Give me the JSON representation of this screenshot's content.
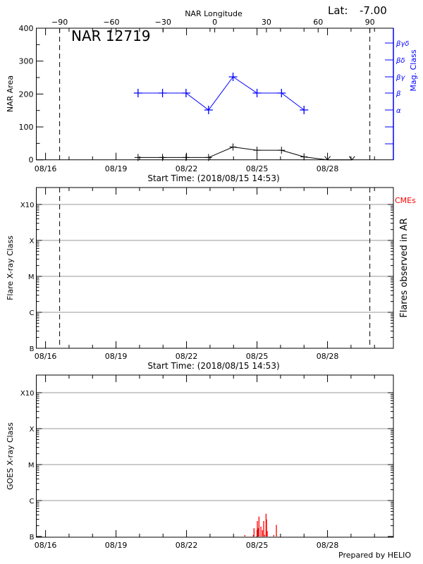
{
  "header": {
    "lat_label": "Lat:",
    "lat_value": "-7.00",
    "region_title": "NAR 12719"
  },
  "footer": {
    "credit": "Prepared by HELIO"
  },
  "colors": {
    "area": "#000000",
    "mag_class": "#0000ff",
    "goes_flux": "#ff0000",
    "cme_label": "#ff0000",
    "grid": "#999999"
  },
  "chart_data": [
    {
      "type": "line",
      "title": "NAR 12719",
      "xlabel": "Start Time: (2018/08/15 14:53)",
      "x_ticks": [
        "08/16",
        "08/19",
        "08/22",
        "08/25",
        "08/28"
      ],
      "top_axis": {
        "label": "NAR Longitude",
        "ticks": [
          "-90",
          "-60",
          "-30",
          "0",
          "30",
          "60",
          "90"
        ],
        "limb_markers_longitude": [
          -90,
          90
        ]
      },
      "ylabel": "NAR Area",
      "ylim": [
        0,
        400
      ],
      "y_ticks": [
        "0",
        "100",
        "200",
        "300",
        "400"
      ],
      "y2label": "Mag. Class",
      "y2_ticks": [
        "α",
        "β",
        "βγ",
        "βδ",
        "βγδ"
      ],
      "series": [
        {
          "name": "NAR Area",
          "color": "#000000",
          "x": [
            "08/19 22:30",
            "08/20 23:30",
            "08/21 23:30",
            "08/22 22:30",
            "08/23 23:30",
            "08/25 00:00",
            "08/26 01:00",
            "08/27 00:00",
            "08/28 00:00",
            "08/29 01:00"
          ],
          "y": [
            7,
            7,
            7,
            7,
            39,
            29,
            29,
            9,
            0,
            0
          ],
          "marker": [
            "+",
            "+",
            "+",
            "+",
            "+",
            "+",
            "+",
            "+",
            "v",
            "v"
          ]
        },
        {
          "name": "Mag. Class",
          "color": "#0000ff",
          "x": [
            "08/19 22:30",
            "08/20 23:30",
            "08/21 23:30",
            "08/22 22:30",
            "08/23 23:30",
            "08/25 00:00",
            "08/26 01:00",
            "08/27 00:00"
          ],
          "y": [
            "β",
            "β",
            "β",
            "α",
            "βγ",
            "β",
            "β",
            "α"
          ]
        }
      ]
    },
    {
      "type": "bar",
      "xlabel": "Start Time: (2018/08/15 14:53)",
      "x_ticks": [
        "08/16",
        "08/19",
        "08/22",
        "08/25",
        "08/28"
      ],
      "ylabel": "Flare X-ray Class",
      "y_ticks": [
        "B",
        "C",
        "M",
        "X",
        "X10"
      ],
      "y2label": "Flares observed in AR",
      "annotation": "CMEs",
      "grid": true,
      "series": []
    },
    {
      "type": "bar",
      "x_ticks": [
        "08/16",
        "08/19",
        "08/22",
        "08/25",
        "08/28"
      ],
      "ylabel": "GOES X-ray Class",
      "y_ticks": [
        "B",
        "C",
        "M",
        "X",
        "X10"
      ],
      "grid": true,
      "series": [
        {
          "color": "#ff0000",
          "x": [
            "08/24 11:34",
            "08/24 20:12",
            "08/24 20:55",
            "08/25 00:19",
            "08/25 01:02",
            "08/25 01:58",
            "08/25 03:55",
            "08/25 05:34",
            "08/25 06:47",
            "08/25 07:30",
            "08/25 09:10",
            "08/25 09:40",
            "08/25 10:23",
            "08/25 17:05",
            "08/25 19:45"
          ],
          "y": [
            "B1.1",
            "B1.1",
            "B1.7",
            "B2.7",
            "B1.7",
            "B3.6",
            "B1.9",
            "B1.5",
            "B2.7",
            "B1.1",
            "B4.3",
            "B3.0",
            "B1.4",
            "B1.1",
            "B2.1"
          ]
        }
      ]
    }
  ]
}
